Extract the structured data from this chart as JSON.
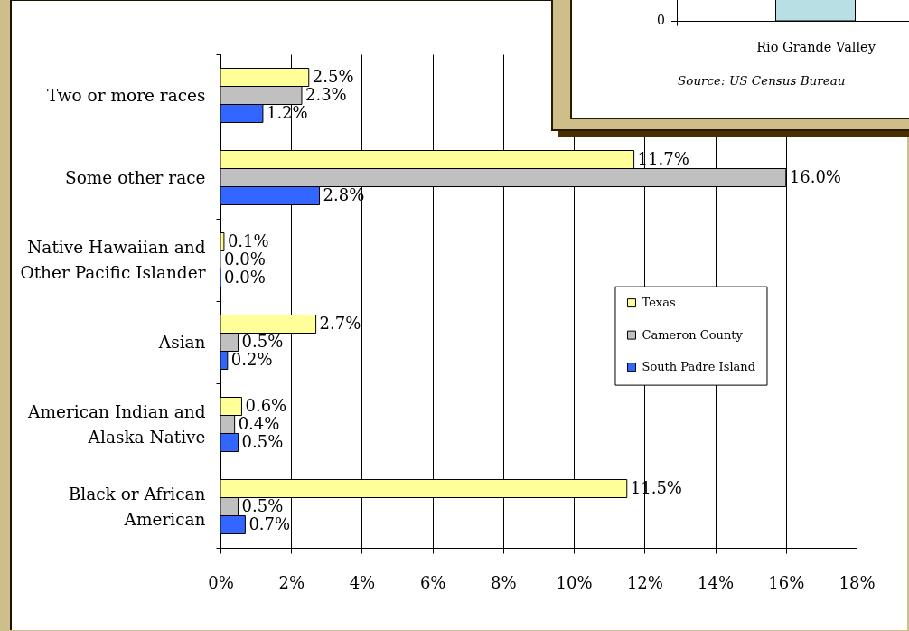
{
  "chart_data": [
    {
      "type": "bar",
      "orientation": "horizontal",
      "categories": [
        "Two or more races",
        "Some other race",
        "Native Hawaiian and Other Pacific Islander",
        "Asian",
        "American Indian and Alaska Native",
        "Black or African American"
      ],
      "series": [
        {
          "name": "Texas",
          "color": "#ffff99",
          "values": [
            2.5,
            11.7,
            0.1,
            2.7,
            0.6,
            11.5
          ],
          "value_labels": [
            "2.5%",
            "11.7%",
            "0.1%",
            "2.7%",
            "0.6%",
            "11.5%"
          ]
        },
        {
          "name": "Cameron County",
          "color": "#c0c0c0",
          "values": [
            2.3,
            16.0,
            0.0,
            0.5,
            0.4,
            0.5
          ],
          "value_labels": [
            "2.3%",
            "16.0%",
            "0.0%",
            "0.5%",
            "0.4%",
            "0.5%"
          ]
        },
        {
          "name": "South Padre Island",
          "color": "#3366ff",
          "values": [
            1.2,
            2.8,
            0.0,
            0.2,
            0.5,
            0.7
          ],
          "value_labels": [
            "1.2%",
            "2.8%",
            "0.0%",
            "0.2%",
            "0.5%",
            "0.7%"
          ]
        }
      ],
      "xlim": [
        0,
        18
      ],
      "xticks": [
        {
          "value": 0,
          "label": "0%"
        },
        {
          "value": 2,
          "label": "2%"
        },
        {
          "value": 4,
          "label": "4%"
        },
        {
          "value": 6,
          "label": "6%"
        },
        {
          "value": 8,
          "label": "8%"
        },
        {
          "value": 10,
          "label": "10%"
        },
        {
          "value": 12,
          "label": "12%"
        },
        {
          "value": 14,
          "label": "14%"
        },
        {
          "value": 16,
          "label": "16%"
        },
        {
          "value": 18,
          "label": "18%"
        }
      ],
      "grid": "x",
      "legend": "right"
    },
    {
      "type": "other",
      "annotations": [
        "0",
        "Rio Grande Valley",
        "Source: US Census Bureau"
      ]
    }
  ]
}
